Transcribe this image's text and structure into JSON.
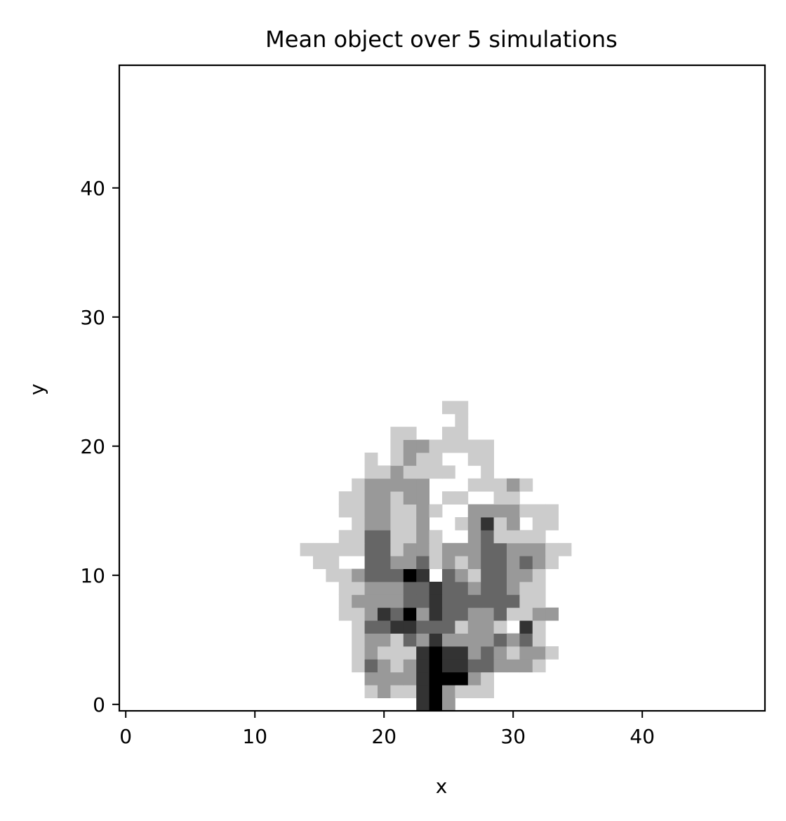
{
  "chart_data": {
    "type": "heatmap",
    "title": "Mean object over 5 simulations",
    "xlabel": "x",
    "ylabel": "y",
    "xlim": [
      -0.5,
      49.5
    ],
    "ylim": [
      -0.5,
      49.5
    ],
    "x_ticks": [
      0,
      10,
      20,
      30,
      40
    ],
    "y_ticks": [
      0,
      10,
      20,
      30,
      40
    ],
    "x_tick_labels": [
      "0",
      "10",
      "20",
      "30",
      "40"
    ],
    "y_tick_labels": [
      "0",
      "10",
      "20",
      "30",
      "40"
    ],
    "grid": false,
    "colormap": "greys",
    "value_range": [
      0,
      1
    ],
    "colors": {
      "low": "#ffffff",
      "high": "#000000",
      "frame": "#000000"
    },
    "rows": [
      {
        "y": 0,
        "cells": [
          [
            23,
            0.8
          ],
          [
            24,
            1.0
          ],
          [
            25,
            0.4
          ]
        ]
      },
      {
        "y": 1,
        "cells": [
          [
            19,
            0.2
          ],
          [
            20,
            0.4
          ],
          [
            21,
            0.2
          ],
          [
            22,
            0.2
          ],
          [
            23,
            0.8
          ],
          [
            24,
            1.0
          ],
          [
            25,
            0.4
          ],
          [
            26,
            0.2
          ],
          [
            27,
            0.2
          ],
          [
            28,
            0.2
          ]
        ]
      },
      {
        "y": 2,
        "cells": [
          [
            19,
            0.4
          ],
          [
            20,
            0.4
          ],
          [
            21,
            0.4
          ],
          [
            22,
            0.4
          ],
          [
            23,
            0.8
          ],
          [
            24,
            1.0
          ],
          [
            25,
            1.0
          ],
          [
            26,
            1.0
          ],
          [
            27,
            0.4
          ],
          [
            28,
            0.2
          ]
        ]
      },
      {
        "y": 3,
        "cells": [
          [
            18,
            0.2
          ],
          [
            19,
            0.6
          ],
          [
            20,
            0.4
          ],
          [
            21,
            0.2
          ],
          [
            22,
            0.4
          ],
          [
            23,
            0.8
          ],
          [
            24,
            1.0
          ],
          [
            25,
            0.8
          ],
          [
            26,
            0.8
          ],
          [
            27,
            0.6
          ],
          [
            28,
            0.6
          ],
          [
            29,
            0.4
          ],
          [
            30,
            0.4
          ],
          [
            31,
            0.4
          ],
          [
            32,
            0.2
          ]
        ]
      },
      {
        "y": 4,
        "cells": [
          [
            18,
            0.2
          ],
          [
            19,
            0.4
          ],
          [
            20,
            0.2
          ],
          [
            21,
            0.2
          ],
          [
            22,
            0.2
          ],
          [
            23,
            0.8
          ],
          [
            24,
            1.0
          ],
          [
            25,
            0.8
          ],
          [
            26,
            0.8
          ],
          [
            27,
            0.4
          ],
          [
            28,
            0.6
          ],
          [
            29,
            0.4
          ],
          [
            30,
            0.2
          ],
          [
            31,
            0.4
          ],
          [
            32,
            0.4
          ],
          [
            33,
            0.2
          ]
        ]
      },
      {
        "y": 5,
        "cells": [
          [
            18,
            0.2
          ],
          [
            19,
            0.4
          ],
          [
            20,
            0.4
          ],
          [
            21,
            0.2
          ],
          [
            22,
            0.6
          ],
          [
            23,
            0.4
          ],
          [
            24,
            0.8
          ],
          [
            25,
            0.4
          ],
          [
            26,
            0.4
          ],
          [
            27,
            0.4
          ],
          [
            28,
            0.4
          ],
          [
            29,
            0.6
          ],
          [
            30,
            0.4
          ],
          [
            31,
            0.6
          ],
          [
            32,
            0.2
          ]
        ]
      },
      {
        "y": 6,
        "cells": [
          [
            18,
            0.2
          ],
          [
            19,
            0.6
          ],
          [
            20,
            0.6
          ],
          [
            21,
            0.8
          ],
          [
            22,
            0.8
          ],
          [
            23,
            0.6
          ],
          [
            24,
            0.6
          ],
          [
            25,
            0.6
          ],
          [
            26,
            0.2
          ],
          [
            27,
            0.4
          ],
          [
            28,
            0.4
          ],
          [
            29,
            0.2
          ],
          [
            31,
            0.8
          ],
          [
            32,
            0.2
          ]
        ]
      },
      {
        "y": 7,
        "cells": [
          [
            17,
            0.2
          ],
          [
            18,
            0.2
          ],
          [
            19,
            0.4
          ],
          [
            20,
            0.8
          ],
          [
            21,
            0.6
          ],
          [
            22,
            1.0
          ],
          [
            23,
            0.4
          ],
          [
            24,
            0.8
          ],
          [
            25,
            0.6
          ],
          [
            26,
            0.6
          ],
          [
            27,
            0.4
          ],
          [
            28,
            0.4
          ],
          [
            29,
            0.6
          ],
          [
            30,
            0.2
          ],
          [
            31,
            0.2
          ],
          [
            32,
            0.4
          ],
          [
            33,
            0.4
          ]
        ]
      },
      {
        "y": 8,
        "cells": [
          [
            17,
            0.2
          ],
          [
            18,
            0.4
          ],
          [
            19,
            0.4
          ],
          [
            20,
            0.4
          ],
          [
            21,
            0.4
          ],
          [
            22,
            0.6
          ],
          [
            23,
            0.6
          ],
          [
            24,
            0.8
          ],
          [
            25,
            0.6
          ],
          [
            26,
            0.6
          ],
          [
            27,
            0.6
          ],
          [
            28,
            0.6
          ],
          [
            29,
            0.6
          ],
          [
            30,
            0.6
          ],
          [
            31,
            0.2
          ],
          [
            32,
            0.2
          ]
        ]
      },
      {
        "y": 9,
        "cells": [
          [
            17,
            0.2
          ],
          [
            18,
            0.2
          ],
          [
            19,
            0.4
          ],
          [
            20,
            0.4
          ],
          [
            21,
            0.4
          ],
          [
            22,
            0.6
          ],
          [
            23,
            0.6
          ],
          [
            24,
            0.8
          ],
          [
            25,
            0.6
          ],
          [
            26,
            0.6
          ],
          [
            27,
            0.4
          ],
          [
            28,
            0.6
          ],
          [
            29,
            0.6
          ],
          [
            30,
            0.4
          ],
          [
            31,
            0.2
          ],
          [
            32,
            0.2
          ]
        ]
      },
      {
        "y": 10,
        "cells": [
          [
            16,
            0.2
          ],
          [
            17,
            0.2
          ],
          [
            18,
            0.4
          ],
          [
            19,
            0.6
          ],
          [
            20,
            0.6
          ],
          [
            21,
            0.6
          ],
          [
            22,
            1.0
          ],
          [
            23,
            0.8
          ],
          [
            25,
            0.6
          ],
          [
            26,
            0.4
          ],
          [
            27,
            0.2
          ],
          [
            28,
            0.6
          ],
          [
            29,
            0.6
          ],
          [
            30,
            0.4
          ],
          [
            31,
            0.4
          ],
          [
            32,
            0.2
          ]
        ]
      },
      {
        "y": 11,
        "cells": [
          [
            15,
            0.2
          ],
          [
            16,
            0.2
          ],
          [
            19,
            0.6
          ],
          [
            20,
            0.6
          ],
          [
            21,
            0.4
          ],
          [
            22,
            0.4
          ],
          [
            23,
            0.6
          ],
          [
            24,
            0.2
          ],
          [
            25,
            0.4
          ],
          [
            26,
            0.2
          ],
          [
            27,
            0.4
          ],
          [
            28,
            0.6
          ],
          [
            29,
            0.6
          ],
          [
            30,
            0.4
          ],
          [
            31,
            0.6
          ],
          [
            32,
            0.4
          ],
          [
            33,
            0.2
          ]
        ]
      },
      {
        "y": 12,
        "cells": [
          [
            14,
            0.2
          ],
          [
            15,
            0.2
          ],
          [
            16,
            0.2
          ],
          [
            17,
            0.2
          ],
          [
            18,
            0.2
          ],
          [
            19,
            0.6
          ],
          [
            20,
            0.6
          ],
          [
            21,
            0.2
          ],
          [
            22,
            0.4
          ],
          [
            23,
            0.4
          ],
          [
            24,
            0.2
          ],
          [
            25,
            0.4
          ],
          [
            26,
            0.4
          ],
          [
            27,
            0.4
          ],
          [
            28,
            0.6
          ],
          [
            29,
            0.6
          ],
          [
            30,
            0.4
          ],
          [
            31,
            0.4
          ],
          [
            32,
            0.4
          ],
          [
            33,
            0.2
          ],
          [
            34,
            0.2
          ]
        ]
      },
      {
        "y": 13,
        "cells": [
          [
            17,
            0.2
          ],
          [
            18,
            0.2
          ],
          [
            19,
            0.6
          ],
          [
            20,
            0.6
          ],
          [
            21,
            0.2
          ],
          [
            22,
            0.2
          ],
          [
            23,
            0.4
          ],
          [
            24,
            0.2
          ],
          [
            27,
            0.4
          ],
          [
            28,
            0.6
          ],
          [
            29,
            0.2
          ],
          [
            30,
            0.2
          ],
          [
            31,
            0.2
          ],
          [
            32,
            0.2
          ]
        ]
      },
      {
        "y": 14,
        "cells": [
          [
            18,
            0.2
          ],
          [
            19,
            0.4
          ],
          [
            20,
            0.4
          ],
          [
            21,
            0.2
          ],
          [
            22,
            0.2
          ],
          [
            23,
            0.4
          ],
          [
            26,
            0.2
          ],
          [
            27,
            0.4
          ],
          [
            28,
            0.8
          ],
          [
            29,
            0.2
          ],
          [
            30,
            0.4
          ],
          [
            32,
            0.2
          ],
          [
            33,
            0.2
          ]
        ]
      },
      {
        "y": 15,
        "cells": [
          [
            17,
            0.2
          ],
          [
            18,
            0.2
          ],
          [
            19,
            0.4
          ],
          [
            20,
            0.4
          ],
          [
            21,
            0.2
          ],
          [
            22,
            0.2
          ],
          [
            23,
            0.4
          ],
          [
            24,
            0.2
          ],
          [
            27,
            0.4
          ],
          [
            28,
            0.4
          ],
          [
            29,
            0.4
          ],
          [
            30,
            0.4
          ],
          [
            31,
            0.2
          ],
          [
            32,
            0.2
          ],
          [
            33,
            0.2
          ]
        ]
      },
      {
        "y": 16,
        "cells": [
          [
            17,
            0.2
          ],
          [
            18,
            0.2
          ],
          [
            19,
            0.4
          ],
          [
            20,
            0.4
          ],
          [
            21,
            0.2
          ],
          [
            22,
            0.4
          ],
          [
            23,
            0.4
          ],
          [
            25,
            0.2
          ],
          [
            26,
            0.2
          ],
          [
            29,
            0.2
          ],
          [
            30,
            0.2
          ]
        ]
      },
      {
        "y": 17,
        "cells": [
          [
            18,
            0.2
          ],
          [
            19,
            0.4
          ],
          [
            20,
            0.4
          ],
          [
            21,
            0.4
          ],
          [
            22,
            0.4
          ],
          [
            23,
            0.4
          ],
          [
            27,
            0.2
          ],
          [
            28,
            0.2
          ],
          [
            29,
            0.2
          ],
          [
            30,
            0.4
          ],
          [
            31,
            0.2
          ]
        ]
      },
      {
        "y": 18,
        "cells": [
          [
            19,
            0.2
          ],
          [
            20,
            0.2
          ],
          [
            21,
            0.4
          ],
          [
            22,
            0.2
          ],
          [
            23,
            0.2
          ],
          [
            24,
            0.2
          ],
          [
            25,
            0.2
          ],
          [
            28,
            0.2
          ]
        ]
      },
      {
        "y": 19,
        "cells": [
          [
            19,
            0.2
          ],
          [
            21,
            0.2
          ],
          [
            22,
            0.4
          ],
          [
            23,
            0.2
          ],
          [
            24,
            0.2
          ],
          [
            27,
            0.2
          ],
          [
            28,
            0.2
          ]
        ]
      },
      {
        "y": 20,
        "cells": [
          [
            21,
            0.2
          ],
          [
            22,
            0.4
          ],
          [
            23,
            0.4
          ],
          [
            24,
            0.2
          ],
          [
            25,
            0.2
          ],
          [
            26,
            0.2
          ],
          [
            27,
            0.2
          ],
          [
            28,
            0.2
          ]
        ]
      },
      {
        "y": 21,
        "cells": [
          [
            21,
            0.2
          ],
          [
            22,
            0.2
          ],
          [
            25,
            0.2
          ],
          [
            26,
            0.2
          ]
        ]
      },
      {
        "y": 22,
        "cells": [
          [
            26,
            0.2
          ]
        ]
      },
      {
        "y": 23,
        "cells": [
          [
            25,
            0.2
          ],
          [
            26,
            0.2
          ]
        ]
      }
    ]
  }
}
